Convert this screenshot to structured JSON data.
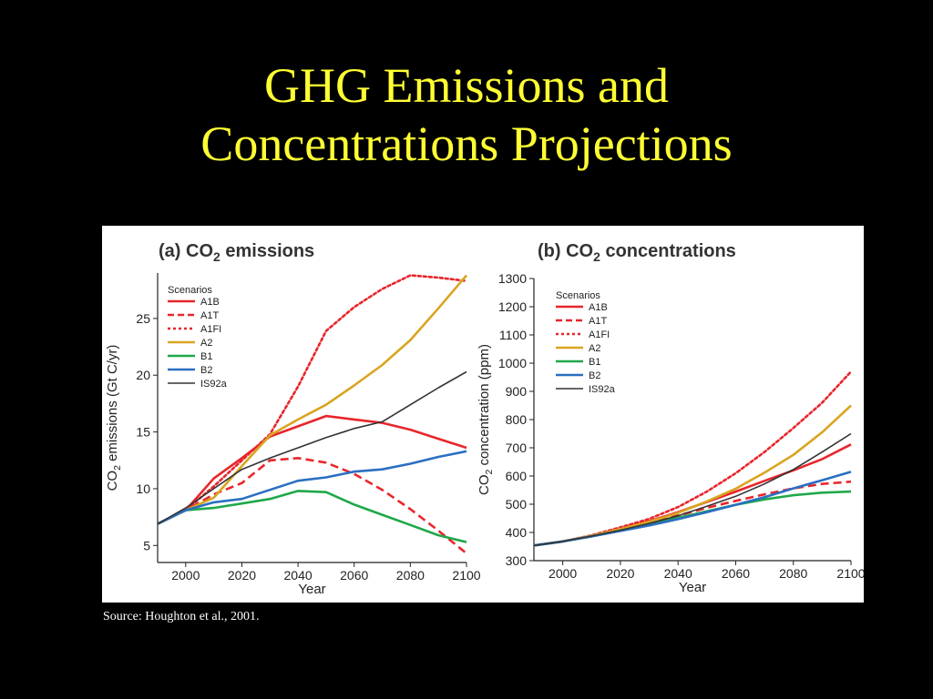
{
  "slide": {
    "title_line1": "GHG Emissions and",
    "title_line2": "Concentrations Projections",
    "source": "Source: Houghton et al., 2001."
  },
  "colors": {
    "background": "#000000",
    "title": "#ffff33",
    "figure_background": "#ffffff",
    "A1B": "#e8262b",
    "A1T": "#e8262b",
    "A1FI": "#e8262b",
    "A2": "#d9a520",
    "B1": "#1fa84a",
    "B2": "#2a6fc1",
    "IS92a": "#333333"
  },
  "chart_data": [
    {
      "type": "line",
      "panel": "a",
      "title_prefix": "(a) CO",
      "title_sub": "2",
      "title_suffix": " emissions",
      "xlabel": "Year",
      "ylabel_prefix": "CO",
      "ylabel_sub": "2",
      "ylabel_suffix": " emissions (Gt C/yr)",
      "xlim": [
        1990,
        2100
      ],
      "ylim": [
        3.5,
        29
      ],
      "xticks": [
        2000,
        2020,
        2040,
        2060,
        2080,
        2100
      ],
      "yticks": [
        5,
        10,
        15,
        20,
        25
      ],
      "grid": false,
      "legend_position": "top-left",
      "legend_title": "Scenarios",
      "series": [
        {
          "name": "A1B",
          "style": "solid",
          "x": [
            1990,
            2000,
            2010,
            2020,
            2030,
            2040,
            2050,
            2060,
            2070,
            2080,
            2090,
            2100
          ],
          "y": [
            6.9,
            8.1,
            10.9,
            12.7,
            14.6,
            15.5,
            16.4,
            16.1,
            15.8,
            15.2,
            14.4,
            13.6
          ]
        },
        {
          "name": "A1T",
          "style": "dashed",
          "x": [
            1990,
            2000,
            2010,
            2020,
            2030,
            2040,
            2050,
            2060,
            2070,
            2080,
            2090,
            2100
          ],
          "y": [
            6.9,
            8.1,
            9.5,
            10.5,
            12.5,
            12.7,
            12.3,
            11.3,
            9.9,
            8.2,
            6.3,
            4.3
          ]
        },
        {
          "name": "A1FI",
          "style": "dotted",
          "x": [
            1990,
            2000,
            2010,
            2020,
            2030,
            2040,
            2050,
            2060,
            2070,
            2080,
            2090,
            2100
          ],
          "y": [
            6.9,
            8.1,
            10.2,
            12.5,
            14.8,
            19.0,
            23.9,
            26.0,
            27.6,
            28.8,
            28.6,
            28.3
          ]
        },
        {
          "name": "A2",
          "style": "solid",
          "x": [
            1990,
            2000,
            2010,
            2020,
            2030,
            2040,
            2050,
            2060,
            2070,
            2080,
            2090,
            2100
          ],
          "y": [
            6.9,
            8.1,
            9.2,
            12.0,
            14.7,
            16.1,
            17.4,
            19.1,
            20.9,
            23.1,
            25.9,
            28.8
          ]
        },
        {
          "name": "B1",
          "style": "solid",
          "x": [
            1990,
            2000,
            2010,
            2020,
            2030,
            2040,
            2050,
            2060,
            2070,
            2080,
            2090,
            2100
          ],
          "y": [
            6.9,
            8.1,
            8.3,
            8.7,
            9.1,
            9.8,
            9.7,
            8.6,
            7.7,
            6.8,
            5.9,
            5.3
          ]
        },
        {
          "name": "B2",
          "style": "solid",
          "x": [
            1990,
            2000,
            2010,
            2020,
            2030,
            2040,
            2050,
            2060,
            2070,
            2080,
            2090,
            2100
          ],
          "y": [
            6.9,
            8.1,
            8.8,
            9.1,
            9.9,
            10.7,
            11.0,
            11.5,
            11.7,
            12.2,
            12.8,
            13.3
          ]
        },
        {
          "name": "IS92a",
          "style": "solid",
          "x": [
            1990,
            2000,
            2010,
            2020,
            2030,
            2040,
            2050,
            2060,
            2070,
            2080,
            2090,
            2100
          ],
          "y": [
            6.9,
            8.3,
            10.0,
            11.7,
            12.7,
            13.6,
            14.5,
            15.3,
            15.9,
            17.4,
            18.9,
            20.3
          ]
        }
      ]
    },
    {
      "type": "line",
      "panel": "b",
      "title_prefix": "(b) CO",
      "title_sub": "2",
      "title_suffix": " concentrations",
      "xlabel": "Year",
      "ylabel_prefix": "CO",
      "ylabel_sub": "2",
      "ylabel_suffix": " concentration (ppm)",
      "xlim": [
        1990,
        2100
      ],
      "ylim": [
        300,
        1300
      ],
      "xticks": [
        2000,
        2020,
        2040,
        2060,
        2080,
        2100
      ],
      "yticks": [
        300,
        400,
        500,
        600,
        700,
        800,
        900,
        1000,
        1100,
        1200,
        1300
      ],
      "grid": false,
      "legend_position": "top-left",
      "legend_title": "Scenarios",
      "series": [
        {
          "name": "A1B",
          "style": "solid",
          "x": [
            1990,
            2000,
            2010,
            2020,
            2030,
            2040,
            2050,
            2060,
            2070,
            2080,
            2090,
            2100
          ],
          "y": [
            354,
            368,
            388,
            413,
            440,
            472,
            508,
            545,
            583,
            620,
            660,
            712
          ]
        },
        {
          "name": "A1T",
          "style": "dashed",
          "x": [
            1990,
            2000,
            2010,
            2020,
            2030,
            2040,
            2050,
            2060,
            2070,
            2080,
            2090,
            2100
          ],
          "y": [
            354,
            368,
            388,
            410,
            434,
            460,
            487,
            512,
            535,
            556,
            572,
            580
          ]
        },
        {
          "name": "A1FI",
          "style": "dotted",
          "x": [
            1990,
            2000,
            2010,
            2020,
            2030,
            2040,
            2050,
            2060,
            2070,
            2080,
            2090,
            2100
          ],
          "y": [
            354,
            368,
            390,
            418,
            448,
            490,
            545,
            610,
            685,
            770,
            860,
            970
          ]
        },
        {
          "name": "A2",
          "style": "solid",
          "x": [
            1990,
            2000,
            2010,
            2020,
            2030,
            2040,
            2050,
            2060,
            2070,
            2080,
            2090,
            2100
          ],
          "y": [
            354,
            368,
            388,
            412,
            438,
            469,
            510,
            555,
            612,
            675,
            755,
            850
          ]
        },
        {
          "name": "B1",
          "style": "solid",
          "x": [
            1990,
            2000,
            2010,
            2020,
            2030,
            2040,
            2050,
            2060,
            2070,
            2080,
            2090,
            2100
          ],
          "y": [
            354,
            368,
            386,
            406,
            428,
            452,
            475,
            498,
            517,
            532,
            541,
            545
          ]
        },
        {
          "name": "B2",
          "style": "solid",
          "x": [
            1990,
            2000,
            2010,
            2020,
            2030,
            2040,
            2050,
            2060,
            2070,
            2080,
            2090,
            2100
          ],
          "y": [
            354,
            368,
            386,
            405,
            425,
            447,
            472,
            498,
            525,
            556,
            585,
            615
          ]
        },
        {
          "name": "IS92a",
          "style": "solid",
          "x": [
            1990,
            2000,
            2010,
            2020,
            2030,
            2040,
            2050,
            2060,
            2070,
            2080,
            2090,
            2100
          ],
          "y": [
            354,
            368,
            387,
            408,
            432,
            459,
            493,
            528,
            572,
            623,
            685,
            750
          ]
        }
      ]
    }
  ]
}
